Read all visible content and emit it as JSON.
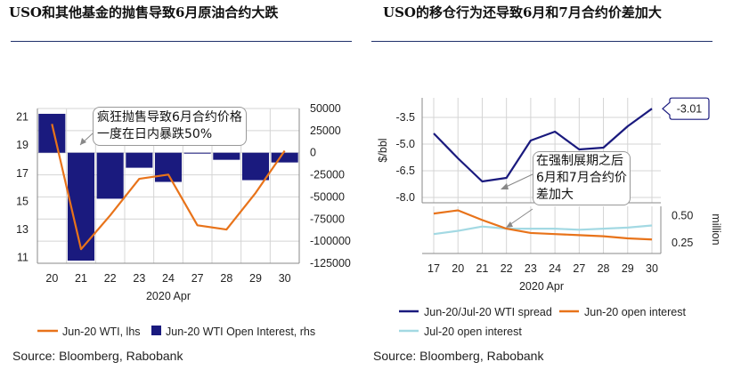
{
  "left_panel": {
    "title": "USO和其他基金的抛售导致6月原油合约大跌",
    "annotation_line1": "疯狂抛售导致6月合约价格",
    "annotation_line2": "一度在日内暴跌50%",
    "xaxis_title": "2020 Apr",
    "legend": [
      "Jun-20 WTI, lhs",
      "Jun-20 WTI Open Interest, rhs"
    ],
    "source": "Source: Bloomberg, Rabobank"
  },
  "right_panel": {
    "title": "USO的移仓行为还导致6月和7月合约价差加大",
    "annotation_line1": "在强制展期之后",
    "annotation_line2": "6月和7月合约价",
    "annotation_line3": "差加大",
    "top_ylabel": "$/bbl",
    "bottom_ylabel": "million",
    "end_value_label": "-3.01",
    "xaxis_title": "2020 Apr",
    "legend": [
      "Jun-20/Jul-20 WTI spread",
      "Jun-20 open interest",
      "Jul-20 open interest"
    ],
    "source": "Source: Bloomberg, Rabobank"
  },
  "colors": {
    "navy": "#1a1a7e",
    "orange": "#e8731a",
    "lightblue": "#a3d9e3",
    "grid": "#d4d4d4",
    "rule": "#1f2f6b"
  },
  "chart_data": [
    {
      "type": "bar",
      "categories": [
        "20",
        "21",
        "22",
        "23",
        "24",
        "27",
        "28",
        "29",
        "30"
      ],
      "xlabel": "2020 Apr",
      "y_left_ticks": [
        "21",
        "19",
        "17",
        "15",
        "13",
        "11"
      ],
      "y_right_ticks": [
        "50000",
        "25000",
        "0",
        "-25000",
        "-50000",
        "-75000",
        "-100000",
        "-125000"
      ],
      "ylim_left": [
        10.6,
        21.6
      ],
      "ylim_right": [
        -125000,
        50000
      ],
      "series": [
        {
          "name": "Jun-20 WTI Open Interest, rhs",
          "type": "bar",
          "axis": "right",
          "values": [
            44000,
            -122000,
            -52000,
            -17000,
            -33000,
            -1000,
            -8000,
            -31000,
            -11000
          ]
        },
        {
          "name": "Jun-20 WTI, lhs",
          "type": "line",
          "axis": "left",
          "values": [
            20.5,
            11.6,
            14.0,
            16.6,
            16.9,
            13.3,
            13.0,
            15.6,
            18.6
          ]
        }
      ]
    },
    {
      "type": "line",
      "x": [
        "17",
        "20",
        "21",
        "22",
        "23",
        "24",
        "27",
        "28",
        "29",
        "30"
      ],
      "xlabel": "2020 Apr",
      "top_ylabel": "$/bbl",
      "top_ticks": [
        "-3.5",
        "-5.0",
        "-6.5",
        "-8.0"
      ],
      "top_ylim": [
        -8.3,
        -2.4
      ],
      "bottom_ylabel": "million",
      "bottom_ticks": [
        "0.50",
        "0.25"
      ],
      "bottom_ylim": [
        0.15,
        0.62
      ],
      "series": [
        {
          "name": "Jun-20/Jul-20 WTI spread",
          "panel": "top",
          "values": [
            -4.4,
            -5.8,
            -7.1,
            -6.9,
            -4.8,
            -4.3,
            -5.3,
            -5.2,
            -4.0,
            -3.01
          ]
        },
        {
          "name": "Jun-20 open interest",
          "panel": "bottom",
          "values": [
            0.52,
            0.55,
            0.46,
            0.38,
            0.34,
            0.33,
            0.32,
            0.31,
            0.29,
            0.28
          ]
        },
        {
          "name": "Jul-20 open interest",
          "panel": "bottom",
          "values": [
            0.33,
            0.36,
            0.4,
            0.38,
            0.38,
            0.38,
            0.37,
            0.38,
            0.39,
            0.41
          ]
        }
      ]
    }
  ]
}
